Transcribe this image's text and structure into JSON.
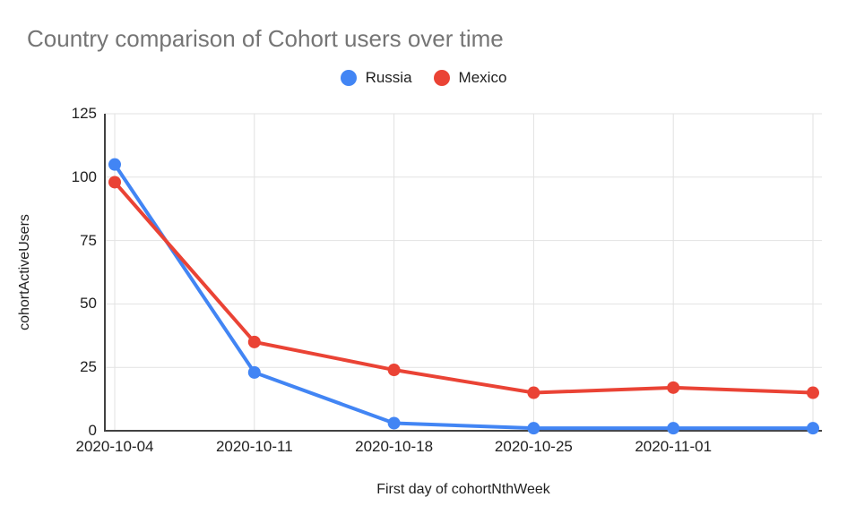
{
  "chart_data": {
    "type": "line",
    "title": "Country comparison of Cohort users over time",
    "xlabel": "First day of cohortNthWeek",
    "ylabel": "cohortActiveUsers",
    "x_labels": [
      "2020-10-04",
      "2020-10-11",
      "2020-10-18",
      "2020-10-25",
      "2020-11-01",
      ""
    ],
    "series": [
      {
        "name": "Russia",
        "color": "#4285F4",
        "values": [
          105,
          23,
          3,
          1,
          1,
          1
        ]
      },
      {
        "name": "Mexico",
        "color": "#EA4335",
        "values": [
          98,
          35,
          24,
          15,
          17,
          15
        ]
      }
    ],
    "ylim": [
      0,
      125
    ],
    "yticks": [
      0,
      25,
      50,
      75,
      100,
      125
    ],
    "grid": true,
    "legend_position": "top-center",
    "colors": {
      "grid": "#e2e2e2",
      "axis": "#424242",
      "title_text": "#757575",
      "label_text": "#212121"
    }
  }
}
